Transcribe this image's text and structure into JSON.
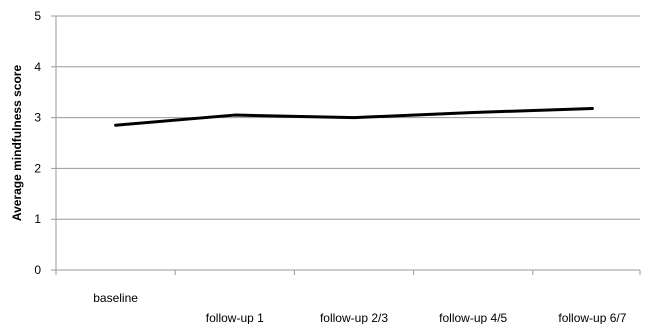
{
  "chart_data": {
    "type": "line",
    "title": "",
    "xlabel": "",
    "ylabel": "Average mindfulness score",
    "categories": [
      "baseline",
      "follow-up 1",
      "follow-up 2/3",
      "follow-up 4/5",
      "follow-up 6/7"
    ],
    "series": [
      {
        "values": [
          2.85,
          3.05,
          3.0,
          3.1,
          3.18
        ],
        "color": "#000000"
      }
    ],
    "ylim": [
      0,
      5
    ],
    "yticks": [
      0,
      1,
      2,
      3,
      4,
      5
    ],
    "grid": true,
    "legend": "none"
  }
}
